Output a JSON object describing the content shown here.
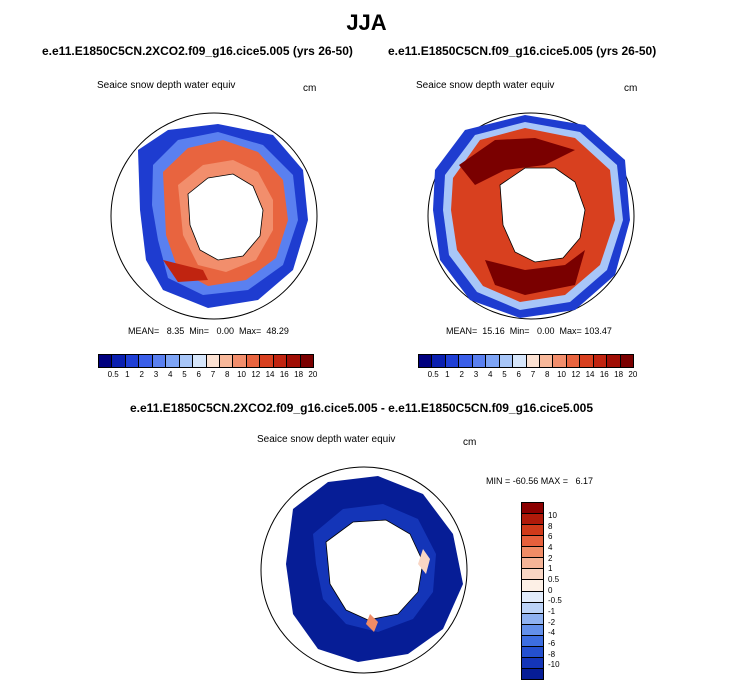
{
  "main_title": "JJA",
  "panels": [
    {
      "title": "e.e11.E1850C5CN.2XCO2.f09_g16.cice5.005 (yrs 26-50)",
      "variable": "Seaice snow depth water equiv",
      "unit": "cm",
      "stats": "MEAN=   8.35  Min=   0.00  Max=  48.29"
    },
    {
      "title": "e.e11.E1850C5CN.f09_g16.cice5.005 (yrs 26-50)",
      "variable": "Seaice snow depth water equiv",
      "unit": "cm",
      "stats": "MEAN=  15.16  Min=   0.00  Max= 103.47"
    },
    {
      "title": "e.e11.E1850C5CN.2XCO2.f09_g16.cice5.005 - e.e11.E1850C5CN.f09_g16.cice5.005",
      "variable": "Seaice snow depth water equiv",
      "unit": "cm",
      "stats": "MIN = -60.56 MAX =   6.17"
    }
  ],
  "colorbar_top": {
    "labels": [
      "0.5",
      "1",
      "2",
      "3",
      "4",
      "5",
      "6",
      "7",
      "8",
      "10",
      "12",
      "14",
      "16",
      "18",
      "20"
    ],
    "colors": [
      "#00007f",
      "#0a1fb0",
      "#1f3fd6",
      "#3a5ee8",
      "#5a80f0",
      "#7ea4f5",
      "#a8c6f8",
      "#d6e6fb",
      "#fbe1d2",
      "#f8b89a",
      "#f28e6c",
      "#e8643f",
      "#d8401f",
      "#c02410",
      "#a00e05",
      "#7a0000"
    ]
  },
  "colorbar_diff": {
    "labels": [
      "10",
      "8",
      "6",
      "4",
      "2",
      "1",
      "0.5",
      "0",
      "-0.5",
      "-1",
      "-2",
      "-4",
      "-6",
      "-8",
      "-10"
    ],
    "colors": [
      "#8b0000",
      "#b01a0a",
      "#d03a1a",
      "#e6603c",
      "#f08c66",
      "#f5b497",
      "#f9d6c4",
      "#fdf0e6",
      "#e2ecfb",
      "#bcd3f7",
      "#8fb2f1",
      "#6390ea",
      "#3d6ee0",
      "#2450cf",
      "#1435b8",
      "#061d96"
    ]
  }
}
